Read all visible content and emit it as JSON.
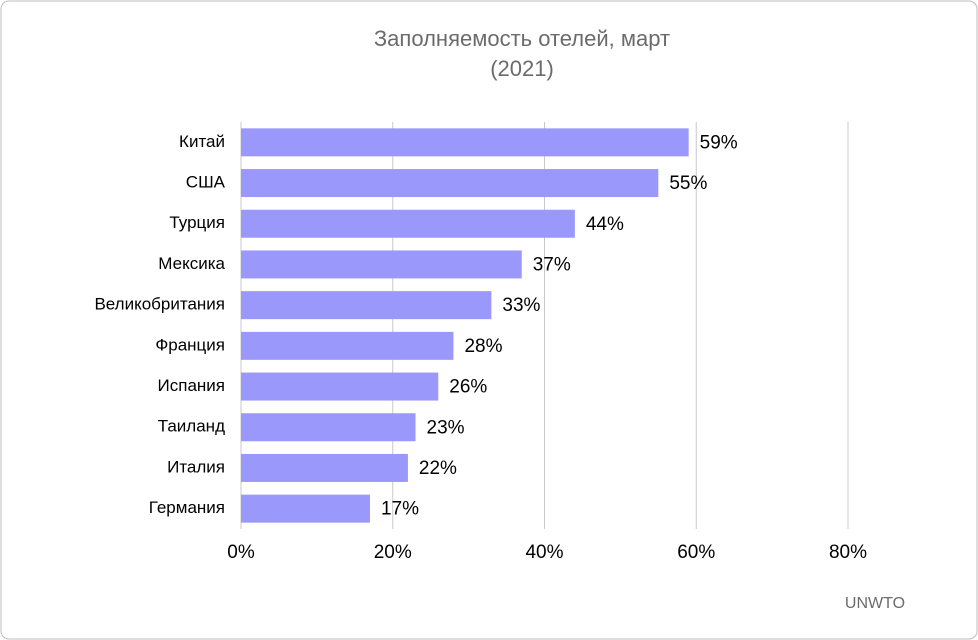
{
  "chart_data": {
    "type": "bar",
    "orientation": "horizontal",
    "title": "Заполняемость отелей, март",
    "subtitle": "(2021)",
    "categories": [
      "Китай",
      "США",
      "Турция",
      "Мексика",
      "Великобритания",
      "Франция",
      "Испания",
      "Таиланд",
      "Италия",
      "Германия"
    ],
    "values": [
      59,
      55,
      44,
      37,
      33,
      28,
      26,
      23,
      22,
      17
    ],
    "value_labels": [
      "59%",
      "55%",
      "44%",
      "37%",
      "33%",
      "28%",
      "26%",
      "23%",
      "22%",
      "17%"
    ],
    "color": "#9b98fb",
    "xlim": [
      0,
      80
    ],
    "xticks": [
      {
        "value": 0,
        "label": "0%"
      },
      {
        "value": 20,
        "label": "20%"
      },
      {
        "value": 40,
        "label": "40%"
      },
      {
        "value": 60,
        "label": "60%"
      },
      {
        "value": 80,
        "label": "80%"
      }
    ],
    "grid": true,
    "source": "UNWTO"
  }
}
